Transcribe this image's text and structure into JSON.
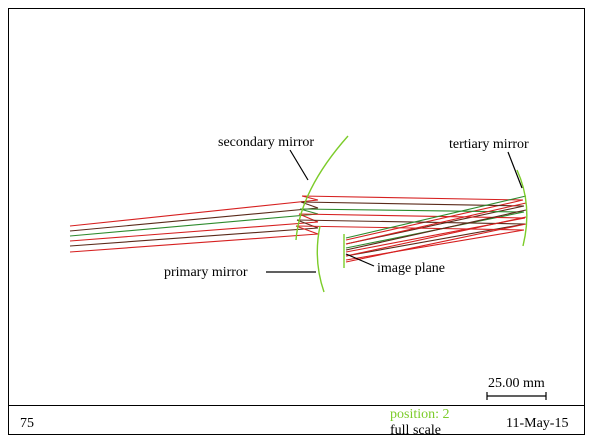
{
  "labels": {
    "secondary": "secondary mirror",
    "tertiary": "tertiary mirror",
    "primary": "primary mirror",
    "image": "image plane"
  },
  "scale_bar": {
    "text": "25.00   mm"
  },
  "footer": {
    "number": "75",
    "position_label": "position:  2",
    "scale_label": "full scale",
    "date": "11-May-15"
  },
  "colors": {
    "mirror": "#7ccc2a",
    "ray_red": "#d62020",
    "ray_green": "#2e8b2e",
    "ray_brown": "#5a2a1a",
    "position_text": "#7ccc2a"
  }
}
